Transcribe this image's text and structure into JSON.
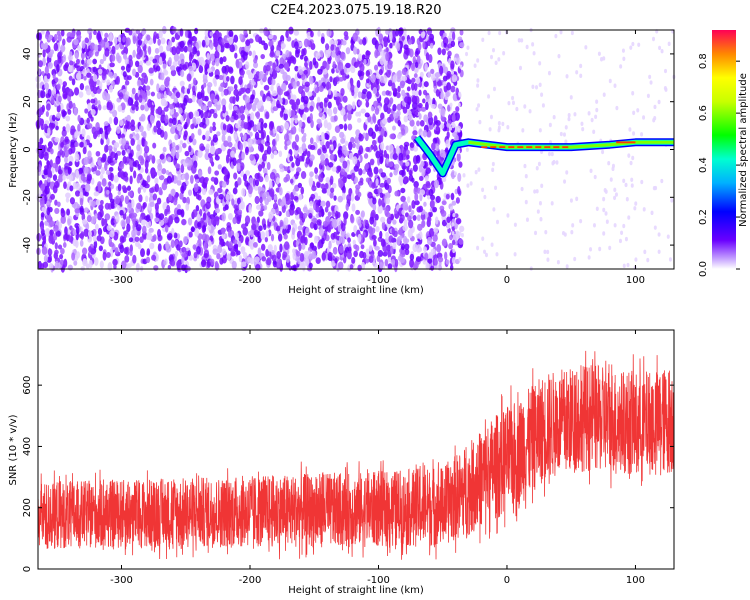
{
  "title": "C2E4.2023.075.19.18.R20",
  "chart_data": [
    {
      "type": "heatmap",
      "xlabel": "Height of straight line (km)",
      "ylabel": "Frequency (Hz)",
      "xlim": [
        -365,
        130
      ],
      "ylim": [
        -50,
        50
      ],
      "xticks": [
        -300,
        -200,
        -100,
        0,
        100
      ],
      "yticks": [
        -40,
        -20,
        0,
        20,
        40
      ],
      "signal_line": {
        "description_points": [
          [
            -70,
            5
          ],
          [
            -60,
            -2
          ],
          [
            -50,
            -10
          ],
          [
            -40,
            2
          ],
          [
            -30,
            3
          ],
          [
            0,
            1
          ],
          [
            50,
            1
          ],
          [
            80,
            2
          ],
          [
            100,
            3
          ],
          [
            130,
            3
          ]
        ]
      },
      "noise_region_x": [
        -365,
        -45
      ],
      "colorbar": {
        "label": "Normalized spectral amplitude",
        "ticks": [
          0.0,
          0.2,
          0.4,
          0.6,
          0.8
        ],
        "range": [
          0.0,
          0.92
        ]
      }
    },
    {
      "type": "line",
      "xlabel": "Height of straight line (km)",
      "ylabel": "SNR (10 * v/v)",
      "xlim": [
        -365,
        130
      ],
      "ylim": [
        0,
        780
      ],
      "xticks": [
        -300,
        -200,
        -100,
        0,
        100
      ],
      "yticks": [
        0,
        200,
        400,
        600
      ],
      "series": [
        {
          "name": "SNR",
          "color": "#f03535",
          "envelope_x": [
            -365,
            -100,
            -50,
            -30,
            -10,
            10,
            30,
            60,
            100,
            130
          ],
          "envelope_low": [
            30,
            30,
            30,
            60,
            100,
            150,
            230,
            260,
            250,
            250
          ],
          "envelope_high": [
            320,
            360,
            380,
            460,
            560,
            620,
            700,
            730,
            700,
            720
          ]
        }
      ]
    }
  ]
}
